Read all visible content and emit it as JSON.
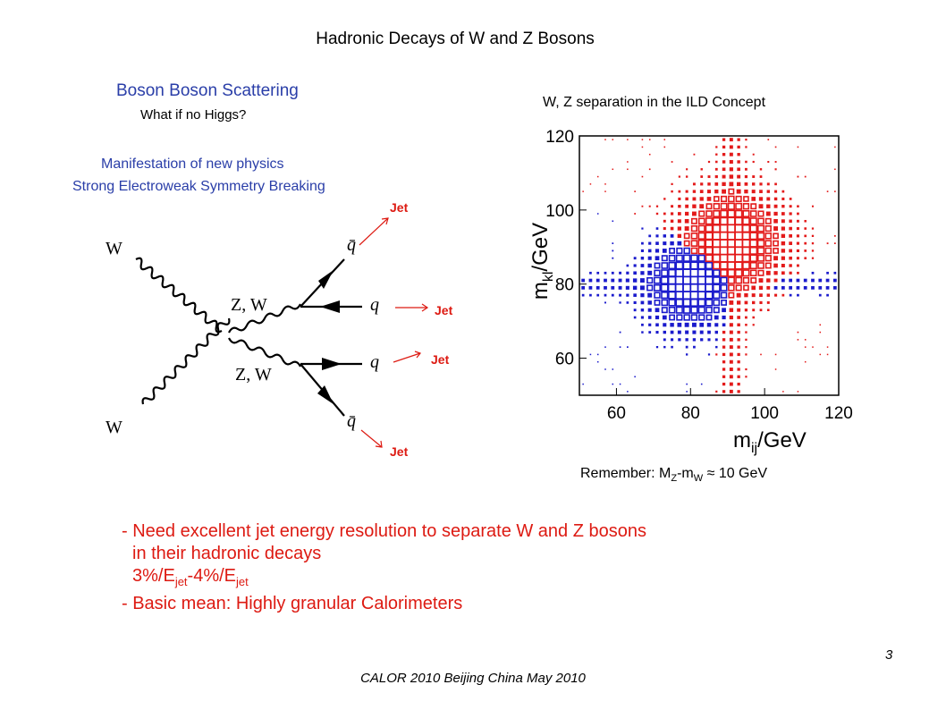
{
  "slide": {
    "title": "Hadronic Decays of W and Z Bosons",
    "footer": "CALOR 2010 Beijing China May 2010",
    "page_number": "3"
  },
  "left_panel": {
    "heading": "Boson Boson Scattering",
    "question": "What if no Higgs?",
    "manifestation_line1": "Manifestation of new physics",
    "manifestation_line2": "Strong Electroweak Symmetry Breaking"
  },
  "feynman": {
    "w_top": "W",
    "w_bottom": "W",
    "zw_upper": "Z, W",
    "zw_lower": "Z, W",
    "qbar_top": "q̄",
    "q_upper": "q",
    "q_lower": "q",
    "qbar_bottom": "q̄",
    "jet_label": "Jet"
  },
  "right_panel": {
    "plot_title": "W, Z separation in the ILD Concept",
    "remember_prefix": "Remember: M",
    "remember_sub1": "Z",
    "remember_mid": "-m",
    "remember_sub2": "W",
    "remember_suffix": " ≈ 10 GeV"
  },
  "chart_data": {
    "type": "heatmap",
    "title": "",
    "xlabel": "m_ij/GeV",
    "ylabel": "m_kl/GeV",
    "xlabel_main": "m",
    "xlabel_sub": "ij",
    "xlabel_unit": "/GeV",
    "ylabel_main": "m",
    "ylabel_sub": "kl",
    "ylabel_unit": "/GeV",
    "xlim": [
      50,
      120
    ],
    "ylim": [
      50,
      120
    ],
    "xticks": [
      60,
      80,
      100,
      120
    ],
    "yticks": [
      60,
      80,
      100,
      120
    ],
    "grid": false,
    "series": [
      {
        "name": "W",
        "color": "#1a1acc",
        "center": [
          80,
          80
        ],
        "spread": [
          6.5,
          6.5
        ]
      },
      {
        "name": "Z",
        "color": "#e31a1a",
        "center": [
          91,
          91
        ],
        "spread": [
          7.5,
          7.5
        ]
      }
    ]
  },
  "bullets": {
    "line1": "- Need excellent jet energy resolution to separate W and Z bosons",
    "line2": "in their hadronic decays",
    "res_a": "3%/E",
    "res_sub1": "jet",
    "res_mid": "-4%/E",
    "res_sub2": "jet",
    "line4": "- Basic mean: Highly granular Calorimeters"
  },
  "colors": {
    "accent_blue": "#2a3ea8",
    "accent_red": "#dd1a12"
  }
}
